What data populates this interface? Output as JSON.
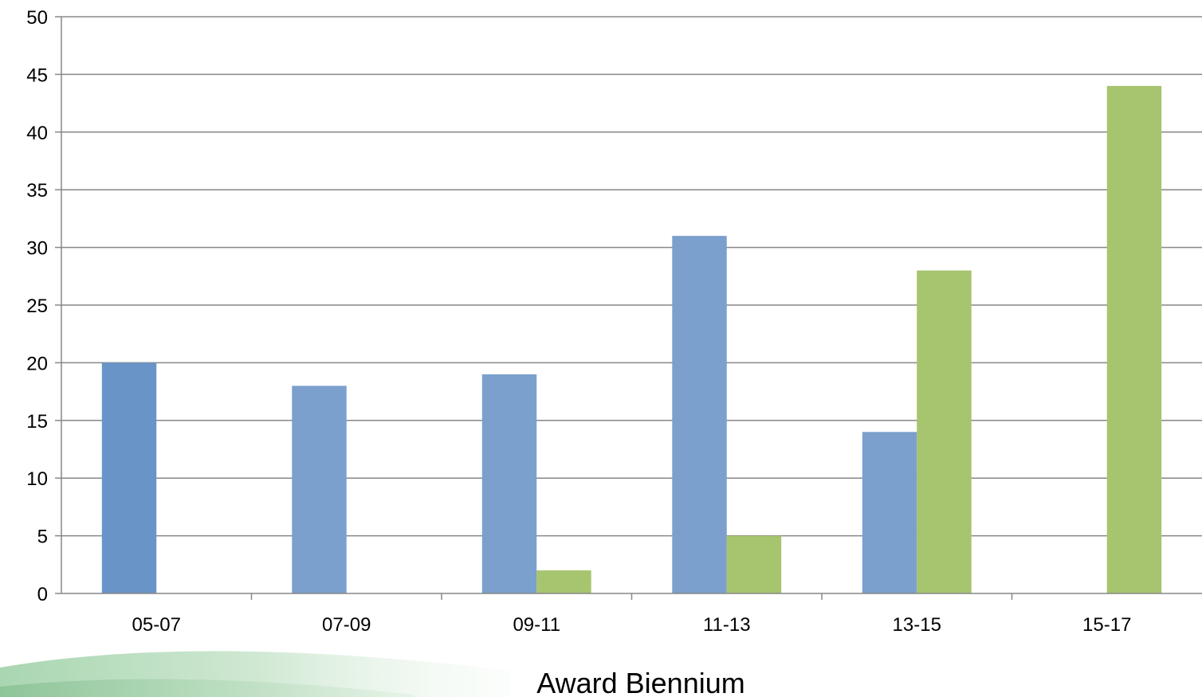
{
  "chart_data": {
    "type": "bar",
    "title": "",
    "xlabel": "Award Biennium",
    "ylabel": "",
    "ylim": [
      0,
      50
    ],
    "yticks": [
      0,
      5,
      10,
      15,
      20,
      25,
      30,
      35,
      40,
      45,
      50
    ],
    "grid": true,
    "legend": "none",
    "categories": [
      "05-07",
      "07-09",
      "09-11",
      "11-13",
      "13-15",
      "15-17"
    ],
    "series": [
      {
        "color": "#7ba0cd",
        "values": [
          20,
          18,
          19,
          31,
          14,
          0
        ]
      },
      {
        "color": "#a7c46f",
        "values": [
          0,
          0,
          2,
          5,
          28,
          44
        ]
      }
    ]
  },
  "colors": {
    "gridline": "#878787",
    "axis": "#878787",
    "first_bar": "#6994c8"
  }
}
